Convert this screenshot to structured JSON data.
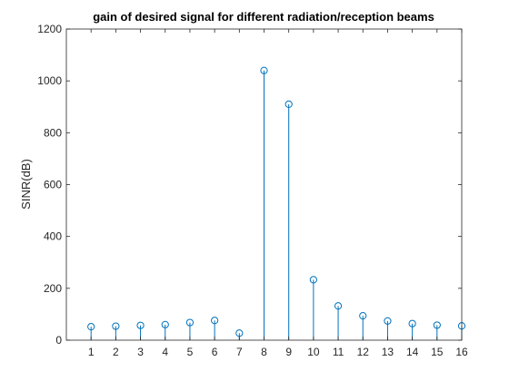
{
  "chart_data": {
    "type": "stem",
    "title": "gain of desired signal for different radiation/reception beams",
    "xlabel": "",
    "ylabel": "SINR(dB)",
    "x": [
      1,
      2,
      3,
      4,
      5,
      6,
      7,
      8,
      9,
      10,
      11,
      12,
      13,
      14,
      15,
      16
    ],
    "values": [
      52,
      54,
      57,
      60,
      68,
      76,
      27,
      1040,
      910,
      233,
      132,
      94,
      74,
      64,
      58,
      55
    ],
    "xlim": [
      0,
      16
    ],
    "ylim": [
      0,
      1200
    ],
    "xticks": [
      "1",
      "2",
      "3",
      "4",
      "5",
      "6",
      "7",
      "8",
      "9",
      "10",
      "11",
      "12",
      "13",
      "14",
      "15",
      "16"
    ],
    "yticks": [
      "0",
      "200",
      "400",
      "600",
      "800",
      "1000",
      "1200"
    ],
    "grid": false,
    "marker": "open-circle",
    "colors": {
      "series": "#0072BD",
      "axis": "#262626",
      "background": "#ffffff"
    }
  }
}
